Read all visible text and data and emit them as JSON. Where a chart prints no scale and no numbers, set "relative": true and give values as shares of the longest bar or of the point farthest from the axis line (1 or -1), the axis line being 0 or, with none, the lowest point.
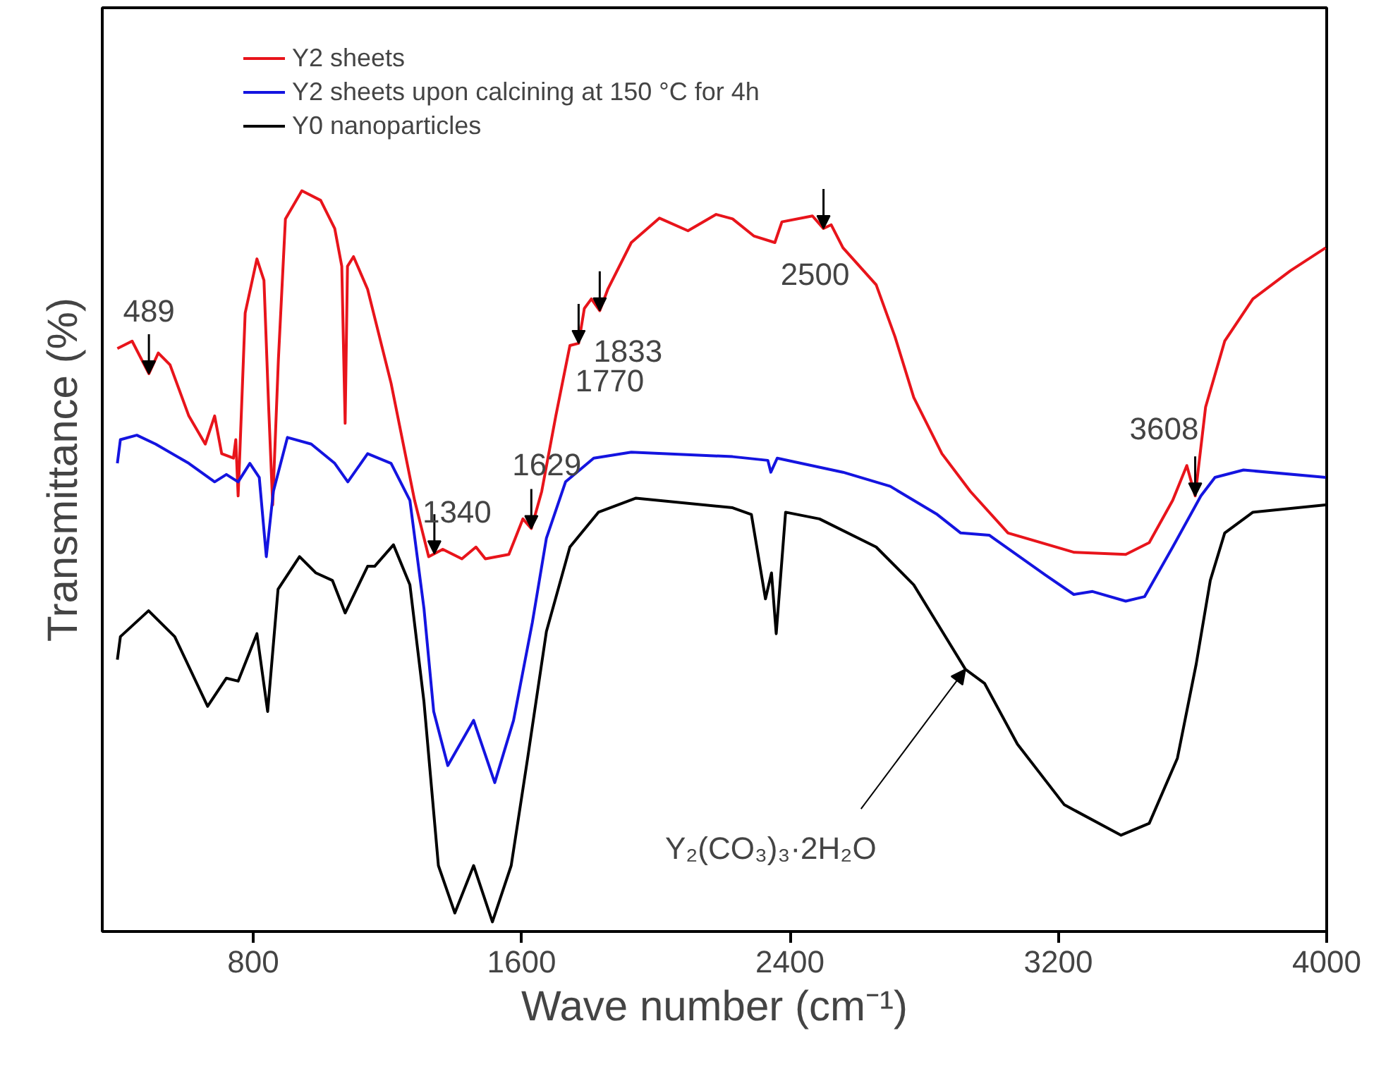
{
  "chart_data": {
    "type": "line",
    "relative": true,
    "xlabel": "Wave number (cm⁻¹)",
    "ylabel": "Transmittance (%)",
    "xlim": [
      350,
      4000
    ],
    "xticks": [
      800,
      1600,
      2400,
      3200,
      4000
    ],
    "tick_labels": "x",
    "legend": "top left",
    "series": [
      {
        "name": "Y2 sheets",
        "color": "#e8141b",
        "x": [
          395,
          439,
          489,
          517,
          552,
          608,
          657,
          685,
          706,
          741,
          748,
          755,
          760,
          776,
          811,
          832,
          846,
          858,
          875,
          896,
          945,
          1001,
          1043,
          1064,
          1074,
          1081,
          1099,
          1141,
          1211,
          1281,
          1323,
          1340,
          1365,
          1422,
          1464,
          1492,
          1562,
          1604,
          1629,
          1660,
          1702,
          1744,
          1770,
          1787,
          1808,
          1833,
          1857,
          1927,
          2011,
          2096,
          2180,
          2229,
          2292,
          2355,
          2376,
          2467,
          2500,
          2523,
          2558,
          2657,
          2713,
          2769,
          2853,
          2938,
          3050,
          3246,
          3401,
          3471,
          3541,
          3583,
          3608,
          3639,
          3696,
          3780,
          3892,
          3997
        ],
        "values": [
          0.787,
          0.797,
          0.753,
          0.781,
          0.765,
          0.696,
          0.658,
          0.696,
          0.645,
          0.639,
          0.664,
          0.588,
          0.645,
          0.835,
          0.908,
          0.879,
          0.708,
          0.576,
          0.772,
          0.962,
          1.0,
          0.987,
          0.949,
          0.898,
          0.686,
          0.898,
          0.911,
          0.867,
          0.74,
          0.582,
          0.506,
          0.51,
          0.516,
          0.503,
          0.519,
          0.503,
          0.509,
          0.557,
          0.544,
          0.594,
          0.696,
          0.791,
          0.794,
          0.841,
          0.854,
          0.838,
          0.867,
          0.93,
          0.963,
          0.946,
          0.968,
          0.962,
          0.939,
          0.93,
          0.958,
          0.966,
          0.949,
          0.954,
          0.923,
          0.873,
          0.803,
          0.721,
          0.645,
          0.594,
          0.538,
          0.512,
          0.509,
          0.525,
          0.582,
          0.629,
          0.588,
          0.708,
          0.797,
          0.854,
          0.892,
          0.923
        ]
      },
      {
        "name": "Y2 sheets upon calcining at 150 °C for 4h",
        "color": "#1414e0",
        "x": [
          395,
          404,
          453,
          509,
          608,
          685,
          720,
          755,
          790,
          818,
          839,
          860,
          902,
          973,
          1043,
          1082,
          1141,
          1211,
          1267,
          1309,
          1338,
          1380,
          1457,
          1520,
          1576,
          1632,
          1674,
          1731,
          1815,
          1927,
          2229,
          2334,
          2343,
          2362,
          2558,
          2699,
          2839,
          2909,
          2994,
          3162,
          3246,
          3302,
          3401,
          3457,
          3541,
          3625,
          3667,
          3752,
          3997
        ],
        "values": [
          0.632,
          0.664,
          0.67,
          0.658,
          0.632,
          0.607,
          0.617,
          0.607,
          0.632,
          0.613,
          0.506,
          0.594,
          0.667,
          0.658,
          0.632,
          0.607,
          0.645,
          0.632,
          0.582,
          0.436,
          0.297,
          0.224,
          0.285,
          0.201,
          0.285,
          0.417,
          0.531,
          0.607,
          0.639,
          0.647,
          0.641,
          0.636,
          0.62,
          0.639,
          0.62,
          0.601,
          0.563,
          0.538,
          0.535,
          0.481,
          0.455,
          0.459,
          0.446,
          0.452,
          0.519,
          0.588,
          0.613,
          0.623,
          0.613
        ]
      },
      {
        "name": "Y0 nanoparticles",
        "color": "#000000",
        "x": [
          395,
          404,
          488,
          566,
          664,
          720,
          755,
          811,
          843,
          874,
          938,
          987,
          1036,
          1074,
          1141,
          1162,
          1218,
          1267,
          1309,
          1352,
          1401,
          1457,
          1513,
          1569,
          1618,
          1674,
          1744,
          1829,
          1941,
          2229,
          2285,
          2327,
          2345,
          2359,
          2387,
          2488,
          2657,
          2769,
          2846,
          2923,
          2980,
          3078,
          3218,
          3387,
          3471,
          3555,
          3611,
          3653,
          3696,
          3780,
          3997
        ],
        "values": [
          0.367,
          0.398,
          0.433,
          0.398,
          0.304,
          0.342,
          0.338,
          0.402,
          0.297,
          0.462,
          0.506,
          0.484,
          0.474,
          0.43,
          0.493,
          0.493,
          0.522,
          0.468,
          0.31,
          0.089,
          0.025,
          0.089,
          0.013,
          0.089,
          0.234,
          0.405,
          0.519,
          0.566,
          0.585,
          0.572,
          0.563,
          0.449,
          0.484,
          0.402,
          0.566,
          0.557,
          0.519,
          0.468,
          0.411,
          0.354,
          0.335,
          0.253,
          0.171,
          0.13,
          0.146,
          0.234,
          0.361,
          0.474,
          0.538,
          0.566,
          0.576
        ]
      }
    ],
    "annotations": [
      {
        "text": "489",
        "x": 489,
        "y": 0.753
      },
      {
        "text": "1340",
        "x": 1340,
        "y": 0.51
      },
      {
        "text": "1629",
        "x": 1629,
        "y": 0.544
      },
      {
        "text": "1770",
        "x": 1770,
        "y": 0.794
      },
      {
        "text": "1833",
        "x": 1833,
        "y": 0.838
      },
      {
        "text": "2500",
        "x": 2500,
        "y": 0.949
      },
      {
        "text": "3608",
        "x": 3608,
        "y": 0.588
      },
      {
        "text": "Y₂(CO₃)₃·2H₂O",
        "x": 2923,
        "y": 0.354
      }
    ]
  }
}
